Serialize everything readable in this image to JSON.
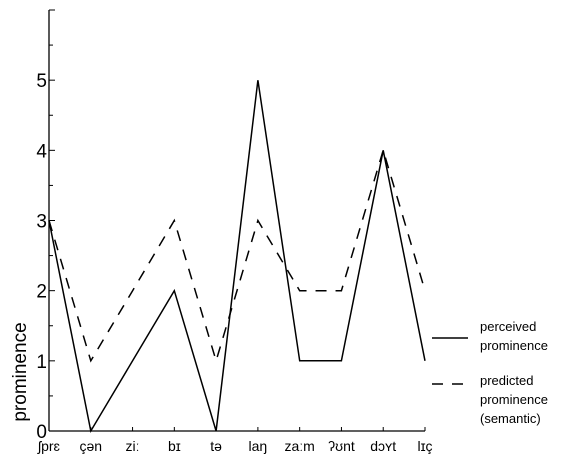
{
  "chart_data": {
    "type": "line",
    "title": "",
    "xlabel": "",
    "ylabel": "prominence",
    "ylim": [
      0,
      6
    ],
    "yticks": [
      "0",
      "1",
      "2",
      "3",
      "4",
      "5"
    ],
    "categories": [
      "ʃprɛ",
      "çən",
      "ziː",
      "bɪ",
      "tə",
      "laŋ",
      "zaːm",
      "ʔʊnt",
      "dɔʏt",
      "lɪç"
    ],
    "grid": false,
    "legend_position": "right",
    "series": [
      {
        "name": "perceived prominence",
        "style": "solid",
        "color": "#000000",
        "values": [
          3,
          0,
          1,
          2,
          0,
          5,
          1,
          1,
          4,
          1
        ]
      },
      {
        "name": "predicted prominence (semantic)",
        "style": "dashed",
        "color": "#000000",
        "values": [
          3,
          1,
          2,
          3,
          1,
          3,
          2,
          2,
          4,
          2
        ]
      }
    ]
  },
  "legend": {
    "entry1_line1": "perceived",
    "entry1_line2": "prominence",
    "entry2_line1": "predicted",
    "entry2_line2": "prominence",
    "entry2_line3": "(semantic)"
  }
}
